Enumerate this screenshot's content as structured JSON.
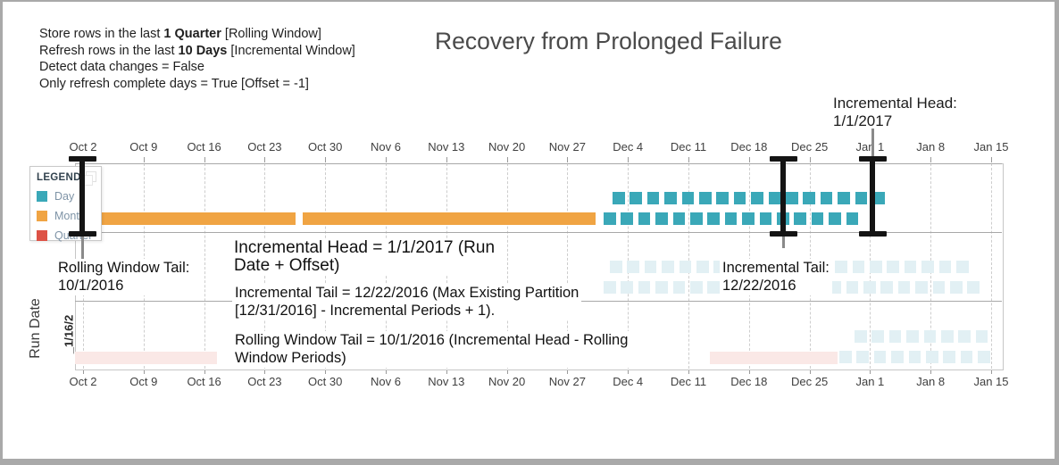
{
  "title": "Recovery from Prolonged Failure",
  "config_panel": {
    "lines": [
      {
        "pre": "Store rows in the last ",
        "bold": "1 Quarter",
        "post": " [Rolling Window]"
      },
      {
        "pre": "Refresh rows in the last ",
        "bold": "10 Days",
        "post": " [Incremental Window]"
      },
      {
        "pre": "Detect data changes = False",
        "bold": "",
        "post": ""
      },
      {
        "pre": "Only refresh complete days = True [Offset = -1]",
        "bold": "",
        "post": ""
      }
    ]
  },
  "head_label": {
    "line1": "Incremental Head:",
    "line2": "1/1/2017"
  },
  "legend": {
    "header": "LEGEND",
    "items": [
      {
        "label": "Day",
        "color": "#3AA8B8"
      },
      {
        "label": "Month",
        "color": "#F0A443"
      },
      {
        "label": "Quarter",
        "color": "#DD5246"
      }
    ]
  },
  "run_date_axis": {
    "label": "Run Date",
    "row_label": "_1/16/2"
  },
  "axis_ticks": [
    "Oct 2",
    "Oct 9",
    "Oct 16",
    "Oct 23",
    "Oct 30",
    "Nov 6",
    "Nov 13",
    "Nov 20",
    "Nov 27",
    "Dec 4",
    "Dec 11",
    "Dec 18",
    "Dec 25",
    "Jan 1",
    "Jan 8",
    "Jan 15"
  ],
  "annotations": [
    {
      "name": "rolling-window-tail-callout",
      "lines": [
        "Rolling Window Tail:",
        "10/1/2016"
      ]
    },
    {
      "name": "incremental-head-note",
      "lines": [
        "Incremental Head = 1/1/2017 (Run",
        "Date + Offset)"
      ]
    },
    {
      "name": "incremental-tail-note",
      "lines": [
        "Incremental Tail = 12/22/2016 (Max Existing Partition",
        "[12/31/2016] - Incremental Periods + 1)."
      ]
    },
    {
      "name": "rolling-window-tail-note",
      "lines": [
        "Rolling Window Tail = 10/1/2016 (Incremental Head - Rolling",
        "Window Periods)"
      ]
    },
    {
      "name": "incremental-tail-callout",
      "lines": [
        "Incremental Tail:",
        "12/22/2016"
      ]
    }
  ],
  "chart_data": {
    "type": "bar",
    "subtype": "gantt_partition_timeline",
    "title": "Recovery from Prolonged Failure",
    "x_axis": {
      "tick_labels": [
        "Oct 2",
        "Oct 9",
        "Oct 16",
        "Oct 23",
        "Oct 30",
        "Nov 6",
        "Nov 13",
        "Nov 20",
        "Nov 27",
        "Dec 4",
        "Dec 11",
        "Dec 18",
        "Dec 25",
        "Jan 1",
        "Jan 8",
        "Jan 15"
      ],
      "range": [
        "10/2/2016",
        "1/15/2017"
      ],
      "gridlines": "weekly dashed vertical, axis repeated top and bottom"
    },
    "y_axis": {
      "label": "Run Date",
      "visible_row_label": "_1/16/2",
      "bands": 3
    },
    "legend": {
      "header": "LEGEND",
      "position": "top-left overlay",
      "entries": [
        {
          "label": "Day",
          "color": "#3AA8B8"
        },
        {
          "label": "Month",
          "color": "#F0A443"
        },
        {
          "label": "Quarter",
          "color": "#DD5246"
        }
      ]
    },
    "series": [
      {
        "name": "month-partitions-current-run",
        "type": "Month",
        "color": "#F0A443",
        "segments": [
          {
            "start": "10/3/2016",
            "end": "10/26/2016"
          },
          {
            "start": "10/27/2016",
            "end": "11/30/2016"
          }
        ]
      },
      {
        "name": "day-partitions-current-run-upper-row",
        "type": "Day",
        "color": "#3AA8B8",
        "start": "12/2/2016",
        "end": "1/1/2017",
        "square_count": 16
      },
      {
        "name": "day-partitions-current-run-lower-row",
        "type": "Day",
        "color": "#3AA8B8",
        "start": "12/1/2016",
        "end": "12/31/2016",
        "square_count": 15
      },
      {
        "name": "day-partitions-faded-band2-row1",
        "type": "Day",
        "color": "#E2F0F4",
        "start": "12/2/2016",
        "end": "1/12/2017",
        "square_count": 21
      },
      {
        "name": "day-partitions-faded-band2-row2",
        "type": "Day",
        "color": "#E2F0F4",
        "start": "12/1/2016",
        "end": "1/13/2017",
        "square_count": 22
      },
      {
        "name": "quarter-partitions-faded-band3",
        "type": "Quarter",
        "color": "#FAE8E6",
        "segments": [
          {
            "start": "10/1/2016",
            "end": "10/17/2016"
          },
          {
            "start": "12/13/2016",
            "end": "12/28/2016"
          }
        ]
      },
      {
        "name": "day-partitions-faded-band3-row1",
        "type": "Day",
        "color": "#E2F0F4",
        "start": "12/30/2016",
        "end": "1/14/2017",
        "square_count": 8
      },
      {
        "name": "day-partitions-faded-band3-row2",
        "type": "Day",
        "color": "#E2F0F4",
        "start": "12/28/2016",
        "end": "1/15/2017",
        "square_count": 9
      }
    ],
    "markers": [
      {
        "name": "rolling-window-tail",
        "date": "10/1/2016",
        "axis_position": "Oct 2"
      },
      {
        "name": "incremental-tail",
        "date": "12/22/2016",
        "axis_position": "Dec 22"
      },
      {
        "name": "incremental-head",
        "date": "1/1/2017",
        "axis_position": "Jan 1"
      }
    ],
    "annotations": [
      "Rolling Window Tail: 10/1/2016",
      "Incremental Head = 1/1/2017 (Run Date + Offset)",
      "Incremental Tail = 12/22/2016 (Max Existing Partition [12/31/2016] - Incremental Periods + 1).",
      "Rolling Window Tail = 10/1/2016 (Incremental Head - Rolling Window Periods)",
      "Incremental Tail: 12/22/2016"
    ]
  },
  "colors": {
    "day": "#3AA8B8",
    "day_faded": "#E2F0F4",
    "month": "#F0A443",
    "quarter": "#DD5246",
    "quarter_faded": "#FAE8E6",
    "marker": "#141414",
    "grid": "#cdcdcd",
    "title": "#4a4a4a"
  }
}
